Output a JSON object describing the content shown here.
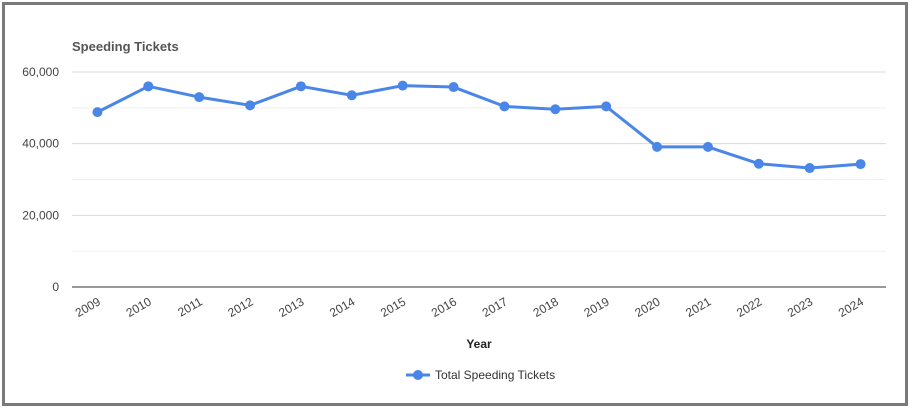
{
  "chart_data": {
    "type": "line",
    "title": "Speeding Tickets",
    "xlabel": "Year",
    "ylabel": "",
    "ylim": [
      0,
      60000
    ],
    "yticks": [
      "0",
      "20,000",
      "40,000",
      "60,000"
    ],
    "grid": true,
    "legend_position": "bottom",
    "categories": [
      "2009",
      "2010",
      "2011",
      "2012",
      "2013",
      "2014",
      "2015",
      "2016",
      "2017",
      "2018",
      "2019",
      "2020",
      "2021",
      "2022",
      "2023",
      "2024"
    ],
    "series": [
      {
        "name": "Total Speeding Tickets",
        "color": "#4a86e8",
        "values": [
          48800,
          56000,
          53000,
          50700,
          56000,
          53500,
          56200,
          55800,
          50400,
          49600,
          50400,
          39100,
          39100,
          34400,
          33200,
          34300
        ]
      }
    ]
  }
}
